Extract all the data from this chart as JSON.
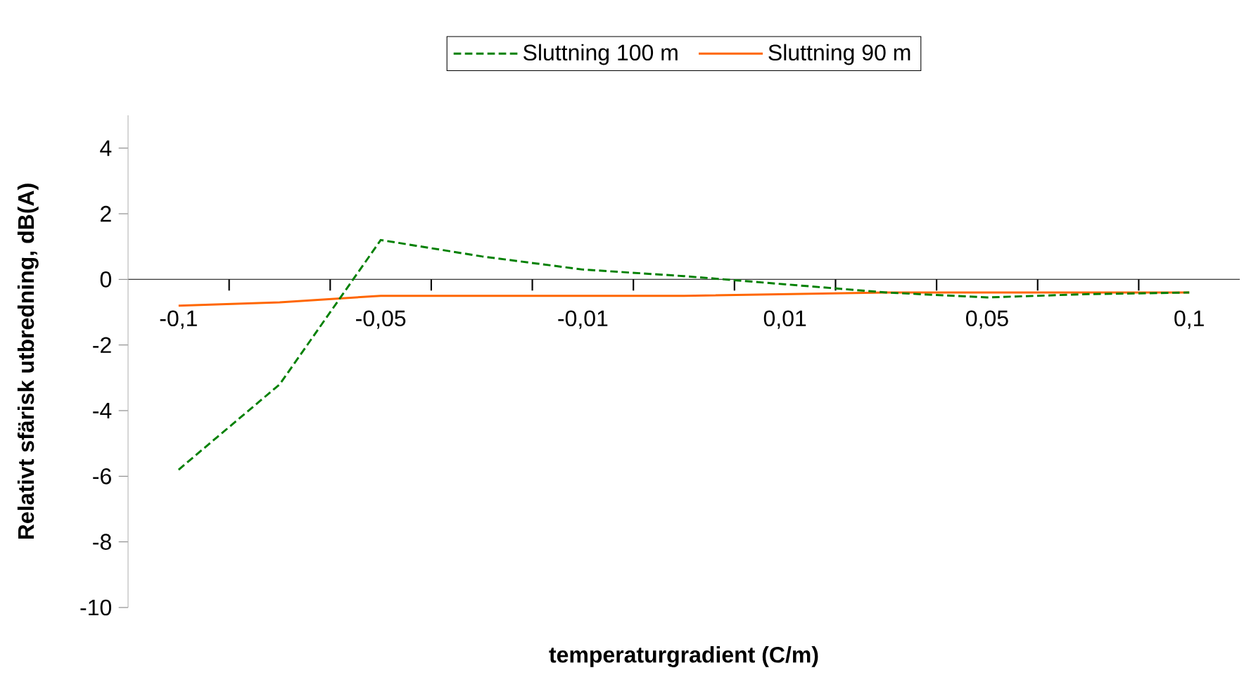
{
  "chart_data": {
    "type": "line",
    "xlabel": "temperaturgradient (C/m)",
    "ylabel": "Relativt sfärisk utbredning, dB(A)",
    "categories": [
      "-0,1",
      null,
      "-0,05",
      null,
      "-0,01",
      null,
      "0,01",
      null,
      "0,05",
      null,
      "0,1"
    ],
    "series": [
      {
        "name": "Sluttning 100 m",
        "color": "#008000",
        "line_style": "dashed",
        "values": [
          -5.8,
          -3.2,
          1.2,
          0.7,
          0.3,
          0.1,
          -0.15,
          -0.4,
          -0.55,
          -0.45,
          -0.4
        ]
      },
      {
        "name": "Sluttning 90 m",
        "color": "#ff6600",
        "line_style": "solid",
        "values": [
          -0.8,
          -0.7,
          -0.5,
          -0.5,
          -0.5,
          -0.5,
          -0.45,
          -0.4,
          -0.4,
          -0.4,
          -0.4
        ]
      }
    ],
    "ylim": [
      -10,
      5
    ],
    "yticks": [
      -10,
      -8,
      -6,
      -4,
      -2,
      0,
      2,
      4
    ],
    "grid": false,
    "legend": "top",
    "marker": "none"
  }
}
